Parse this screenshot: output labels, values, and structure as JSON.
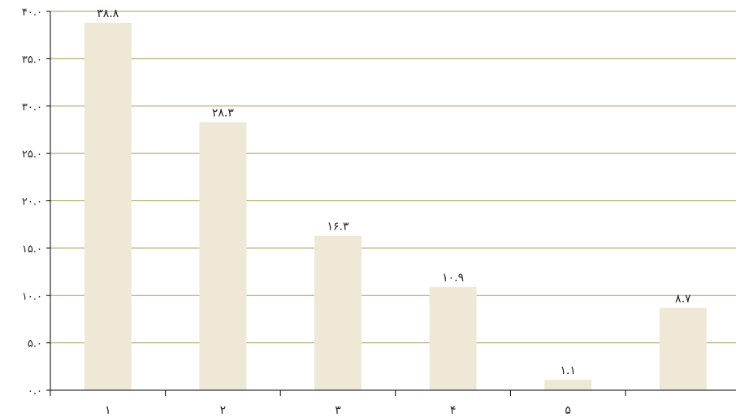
{
  "chart_data": {
    "type": "bar",
    "categories": [
      "۱",
      "۲",
      "۳",
      "۴",
      "۵",
      ""
    ],
    "values": [
      38.8,
      28.3,
      16.3,
      10.9,
      1.1,
      8.7
    ],
    "value_labels": [
      "۳۸.۸",
      "۲۸.۳",
      "۱۶.۳",
      "۱۰.۹",
      "۱.۱",
      "۸.۷"
    ],
    "y_ticks": [
      {
        "value": 0,
        "label": "۰.۰"
      },
      {
        "value": 5,
        "label": "۵.۰"
      },
      {
        "value": 10,
        "label": "۱۰.۰"
      },
      {
        "value": 15,
        "label": "۱۵.۰"
      },
      {
        "value": 20,
        "label": "۲۰.۰"
      },
      {
        "value": 25,
        "label": "۲۵.۰"
      },
      {
        "value": 30,
        "label": "۳۰.۰"
      },
      {
        "value": 35,
        "label": "۳۵.۰"
      },
      {
        "value": 40,
        "label": "۴۰.۰"
      }
    ],
    "ylim": [
      0,
      40
    ],
    "grid": true,
    "title": "",
    "xlabel": "",
    "ylabel": "",
    "colors": {
      "bar": "#efe8d6",
      "grid": "#a89850",
      "axis": "#000000"
    }
  }
}
